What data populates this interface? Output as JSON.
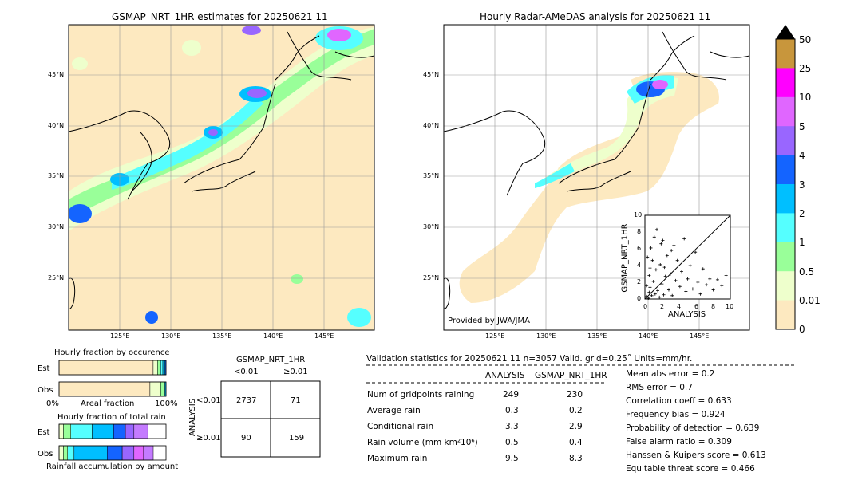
{
  "maps": {
    "left_title": "GSMAP_NRT_1HR estimates for 20250621 11",
    "right_title": "Hourly Radar-AMeDAS analysis for 20250621 11",
    "lat_labels": [
      "45°N",
      "40°N",
      "35°N",
      "30°N",
      "25°N"
    ],
    "lon_labels": [
      "125°E",
      "130°E",
      "135°E",
      "140°E",
      "145°E"
    ],
    "provider": "Provided by JWA/JMA"
  },
  "colorbar": {
    "levels": [
      "50",
      "25",
      "10",
      "5",
      "4",
      "3",
      "2",
      "1",
      "0.5",
      "0.01",
      "0"
    ],
    "colors": [
      "#c8963c",
      "#ff00ff",
      "#e066ff",
      "#9966ff",
      "#1464ff",
      "#00bfff",
      "#55ffff",
      "#99ff99",
      "#eeffcc",
      "#fde9c0"
    ]
  },
  "scatter": {
    "xlabel": "ANALYSIS",
    "ylabel": "GSMAP_NRT_1HR",
    "ticks": [
      "0",
      "2",
      "4",
      "6",
      "8",
      "10"
    ],
    "ticks_y": [
      "10",
      "8",
      "6",
      "4",
      "2",
      "0"
    ]
  },
  "frac_occ": {
    "title": "Hourly fraction by occurence",
    "row1": "Est",
    "row2": "Obs",
    "axis_left": "0%",
    "axis_mid": "Areal fraction",
    "axis_right": "100%"
  },
  "frac_total": {
    "title": "Hourly fraction of total rain",
    "row1": "Est",
    "row2": "Obs",
    "axis_mid": "Rainfall accumulation by amount"
  },
  "contingency": {
    "title": "GSMAP_NRT_1HR",
    "col1": "<0.01",
    "col2": "≥0.01",
    "row_label": "ANALYSIS",
    "row1": "<0.01",
    "row2": "≥0.01",
    "c11": "2737",
    "c12": "71",
    "c21": "90",
    "c22": "159"
  },
  "validation": {
    "header": "Validation statistics for 20250621 11  n=3057 Valid. grid=0.25˚ Units=mm/hr.",
    "col_analysis": "ANALYSIS",
    "col_gsmap": "GSMAP_NRT_1HR",
    "rows": [
      {
        "label": "Num of gridpoints raining",
        "a": "249",
        "g": "230"
      },
      {
        "label": "Average rain",
        "a": "0.3",
        "g": "0.2"
      },
      {
        "label": "Conditional rain",
        "a": "3.3",
        "g": "2.9"
      },
      {
        "label": "Rain volume (mm km²10⁶)",
        "a": "0.5",
        "g": "0.4"
      },
      {
        "label": "Maximum rain",
        "a": "9.5",
        "g": "8.3"
      }
    ],
    "scores": [
      "Mean abs error =    0.2",
      "RMS error =    0.7",
      "Correlation coeff =  0.633",
      "Frequency bias =  0.924",
      "Probability of detection =  0.639",
      "False alarm ratio =  0.309",
      "Hanssen & Kuipers score =  0.613",
      "Equitable threat score =  0.466"
    ]
  },
  "chart_data": [
    {
      "type": "scatter",
      "title": "",
      "xlabel": "ANALYSIS",
      "ylabel": "GSMAP_NRT_1HR",
      "xlim": [
        0,
        10
      ],
      "ylim": [
        0,
        10
      ],
      "points": [
        [
          0.2,
          0.3
        ],
        [
          0.4,
          0.1
        ],
        [
          0.5,
          0.8
        ],
        [
          0.6,
          1.4
        ],
        [
          0.8,
          0.4
        ],
        [
          1.0,
          2.1
        ],
        [
          1.2,
          0.6
        ],
        [
          1.3,
          3.5
        ],
        [
          1.5,
          1.0
        ],
        [
          1.7,
          0.2
        ],
        [
          1.8,
          4.1
        ],
        [
          2.0,
          1.8
        ],
        [
          2.2,
          0.5
        ],
        [
          2.4,
          2.7
        ],
        [
          2.6,
          5.2
        ],
        [
          2.8,
          1.1
        ],
        [
          3.0,
          3.0
        ],
        [
          3.2,
          0.4
        ],
        [
          3.4,
          6.4
        ],
        [
          3.6,
          2.2
        ],
        [
          3.8,
          4.6
        ],
        [
          4.1,
          1.5
        ],
        [
          4.3,
          3.3
        ],
        [
          4.6,
          7.2
        ],
        [
          4.8,
          0.9
        ],
        [
          5.0,
          2.4
        ],
        [
          5.3,
          4.0
        ],
        [
          5.6,
          1.2
        ],
        [
          5.9,
          5.6
        ],
        [
          6.2,
          2.0
        ],
        [
          6.5,
          0.6
        ],
        [
          6.8,
          3.6
        ],
        [
          7.2,
          1.7
        ],
        [
          7.6,
          2.4
        ],
        [
          8.0,
          1.1
        ],
        [
          8.5,
          2.3
        ],
        [
          9.0,
          1.6
        ],
        [
          9.5,
          2.8
        ],
        [
          0.3,
          5.0
        ],
        [
          0.7,
          6.1
        ],
        [
          1.1,
          7.4
        ],
        [
          0.9,
          4.6
        ],
        [
          1.4,
          8.3
        ],
        [
          0.5,
          2.8
        ],
        [
          1.9,
          6.6
        ],
        [
          2.3,
          3.8
        ],
        [
          0.2,
          1.6
        ],
        [
          3.1,
          5.8
        ],
        [
          2.1,
          7.0
        ],
        [
          0.6,
          3.7
        ]
      ]
    },
    {
      "type": "bar",
      "title": "Hourly fraction by occurence",
      "categories": [
        "Est",
        "Obs"
      ],
      "series": [
        {
          "values": [
            0.88,
            0.85
          ]
        },
        {
          "values": [
            0.04,
            0.1
          ]
        },
        {
          "values": [
            0.03,
            0.03
          ]
        },
        {
          "values": [
            0.02,
            0.01
          ]
        },
        {
          "values": [
            0.02,
            0.01
          ]
        },
        {
          "values": [
            0.01,
            0.0
          ]
        }
      ]
    },
    {
      "type": "bar",
      "title": "Hourly fraction of total rain",
      "categories": [
        "Est",
        "Obs"
      ],
      "series": [
        {
          "values": [
            0.04,
            0.04
          ]
        },
        {
          "values": [
            0.07,
            0.04
          ]
        },
        {
          "values": [
            0.2,
            0.06
          ]
        },
        {
          "values": [
            0.2,
            0.31
          ]
        },
        {
          "values": [
            0.11,
            0.14
          ]
        },
        {
          "values": [
            0.08,
            0.11
          ]
        },
        {
          "values": [
            0.0,
            0.09
          ]
        },
        {
          "values": [
            0.13,
            0.09
          ]
        }
      ]
    }
  ]
}
